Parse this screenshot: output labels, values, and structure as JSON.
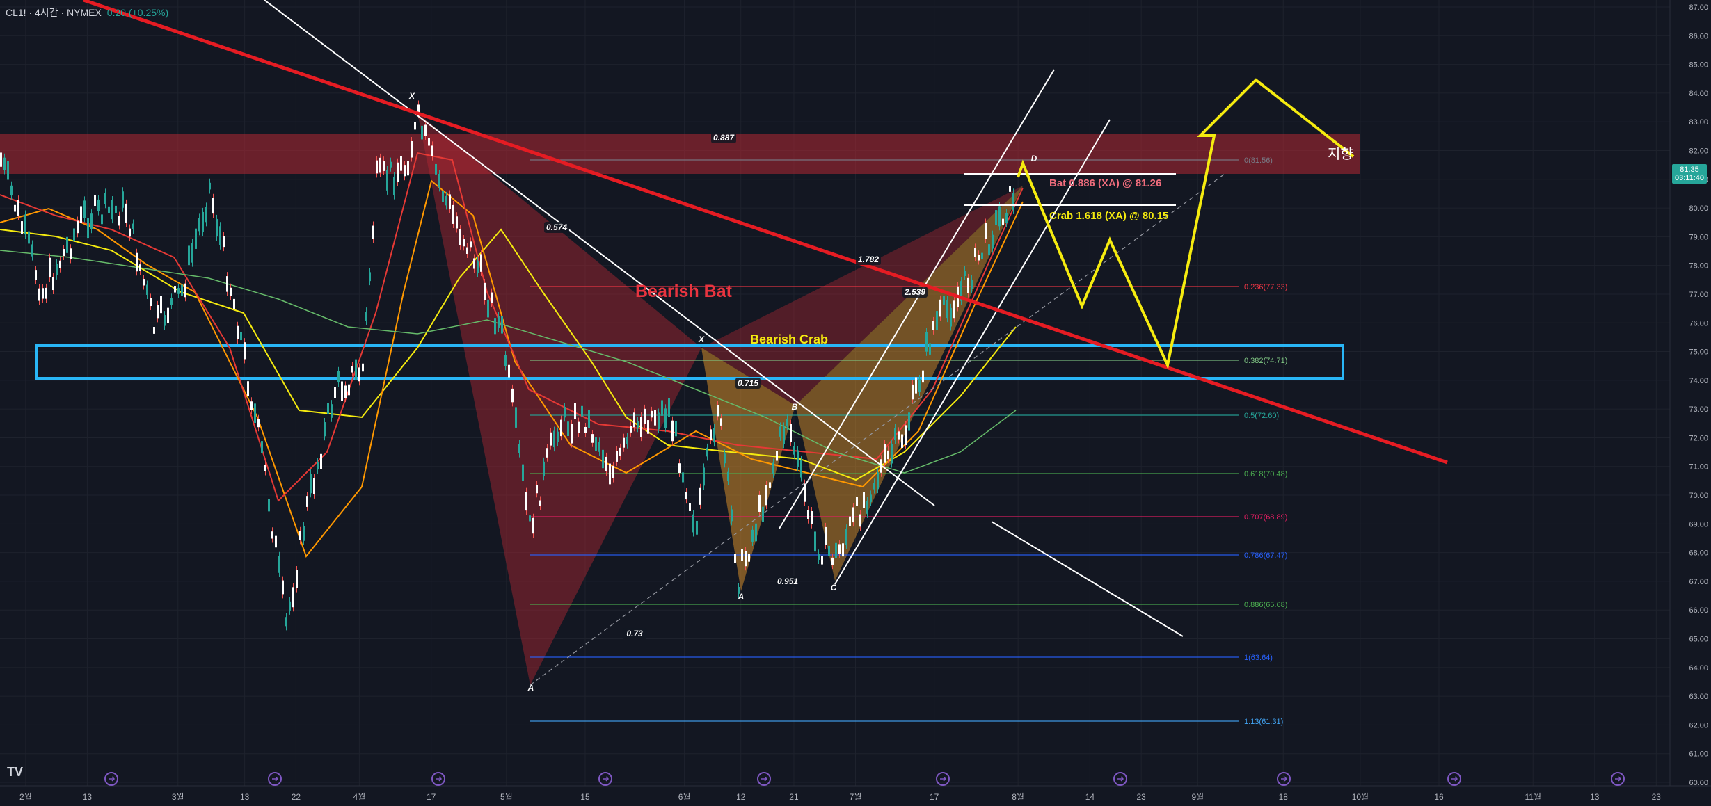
{
  "header": {
    "symbol": "CL1! · 4시간 · NYMEX",
    "change": "0.20 (+0.25%)"
  },
  "price_tag": {
    "price": "81.35",
    "timer": "03:11:40"
  },
  "price_axis": [
    "87.00",
    "86.00",
    "85.00",
    "84.00",
    "83.00",
    "82.00",
    "81.00",
    "80.00",
    "79.00",
    "78.00",
    "77.00",
    "76.00",
    "75.00",
    "74.00",
    "73.00",
    "72.00",
    "71.00",
    "70.00",
    "69.00",
    "68.00",
    "67.00",
    "66.00",
    "65.00",
    "64.00",
    "63.00",
    "62.00",
    "61.00",
    "60.00"
  ],
  "time_axis": [
    {
      "label": "2월",
      "p": 0.015
    },
    {
      "label": "13",
      "p": 0.051
    },
    {
      "label": "3월",
      "p": 0.104
    },
    {
      "label": "13",
      "p": 0.143
    },
    {
      "label": "22",
      "p": 0.173
    },
    {
      "label": "4월",
      "p": 0.21
    },
    {
      "label": "17",
      "p": 0.252
    },
    {
      "label": "5월",
      "p": 0.296
    },
    {
      "label": "15",
      "p": 0.342
    },
    {
      "label": "6월",
      "p": 0.4
    },
    {
      "label": "12",
      "p": 0.433
    },
    {
      "label": "21",
      "p": 0.464
    },
    {
      "label": "7월",
      "p": 0.5
    },
    {
      "label": "17",
      "p": 0.546
    },
    {
      "label": "8월",
      "p": 0.595
    },
    {
      "label": "14",
      "p": 0.637
    },
    {
      "label": "23",
      "p": 0.667
    },
    {
      "label": "9월",
      "p": 0.7
    },
    {
      "label": "18",
      "p": 0.75
    },
    {
      "label": "10월",
      "p": 0.795
    },
    {
      "label": "16",
      "p": 0.841
    },
    {
      "label": "11월",
      "p": 0.896
    },
    {
      "label": "13",
      "p": 0.932
    },
    {
      "label": "23",
      "p": 0.968
    }
  ],
  "fib_levels": [
    {
      "label": "0(81.56)",
      "color": "#787b86"
    },
    {
      "label": "0.236(77.33)",
      "color": "#f23645"
    },
    {
      "label": "0.382(74.71)",
      "color": "#81c784"
    },
    {
      "label": "0.5(72.60)",
      "color": "#26a69a"
    },
    {
      "label": "0.618(70.48)",
      "color": "#4caf50"
    },
    {
      "label": "0.707(68.89)",
      "color": "#e91e63"
    },
    {
      "label": "0.786(67.47)",
      "color": "#2962ff"
    },
    {
      "label": "0.886(65.68)",
      "color": "#4caf50"
    },
    {
      "label": "1(63.64)",
      "color": "#2962ff"
    },
    {
      "label": "1.13(61.31)",
      "color": "#42a5f5"
    }
  ],
  "annotations": {
    "bearish_bat": "Bearish Bat",
    "bearish_crab": "Bearish Crab",
    "bat_target": "Bat 0.886 (XA) @ 81.26",
    "crab_target": "Crab 1.618 (XA) @ 80.15",
    "korean_note": "지향",
    "ratios": [
      "0.887",
      "0.574",
      "1.782",
      "2.539",
      "0.715",
      "0.951",
      "0.73"
    ],
    "points": [
      "X",
      "A",
      "X",
      "A",
      "B",
      "C",
      "D"
    ]
  },
  "colors": {
    "bg": "#131722",
    "trend": "#e51c23",
    "projection": "#f5eb0f",
    "zone_red": "#b22833",
    "box": "#29b6f6",
    "up": "#26a69a"
  }
}
